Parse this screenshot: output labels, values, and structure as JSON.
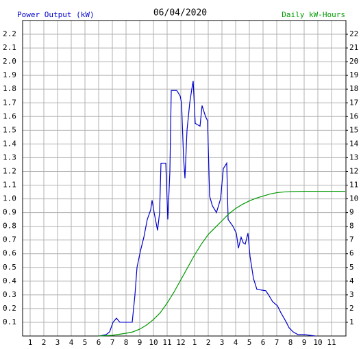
{
  "chart_data": {
    "type": "line",
    "title": "06/04/2020",
    "y_label": "Power Output (kW)",
    "y2_label": "Daily kW-Hours",
    "xlim": [
      0.45,
      24.05
    ],
    "xticks": [
      1,
      2,
      3,
      4,
      5,
      6,
      7,
      8,
      9,
      10,
      11,
      12,
      {
        "value": 13,
        "label": "1"
      },
      {
        "value": 14,
        "label": "2"
      },
      {
        "value": 15,
        "label": "3"
      },
      {
        "value": 16,
        "label": "4"
      },
      {
        "value": 17,
        "label": "5"
      },
      {
        "value": 18,
        "label": "6"
      },
      {
        "value": 19,
        "label": "7"
      },
      {
        "value": 20,
        "label": "8"
      },
      {
        "value": 21,
        "label": "9"
      },
      {
        "value": 22,
        "label": "10"
      },
      {
        "value": 23,
        "label": "11"
      }
    ],
    "ylim": [
      0,
      2.3
    ],
    "yticks": [
      0.1,
      0.2,
      0.3,
      0.4,
      0.5,
      0.6,
      0.7,
      0.8,
      0.9,
      {
        "value": 1,
        "label": "1.0"
      },
      1.1,
      1.2,
      1.3,
      1.4,
      1.5,
      1.6,
      1.7,
      1.8,
      1.9,
      {
        "value": 2,
        "label": "2.0"
      },
      2.1,
      2.2
    ],
    "y2lim": [
      0,
      23
    ],
    "y2ticks": [
      1,
      2,
      3,
      4,
      5,
      6,
      7,
      8,
      9,
      10,
      11,
      12,
      13,
      14,
      15,
      16,
      17,
      18,
      19,
      20,
      21,
      22
    ],
    "grid": true,
    "series": [
      {
        "name": "Power Output (kW)",
        "color": "#0000cc",
        "axis": "y",
        "x": [
          6.05,
          6.55,
          6.8,
          7.05,
          7.3,
          7.55,
          8.05,
          8.45,
          8.65,
          8.8,
          9.05,
          9.3,
          9.55,
          9.8,
          9.9,
          10.05,
          10.3,
          10.45,
          10.55,
          10.9,
          11.05,
          11.2,
          11.3,
          11.7,
          11.95,
          12.05,
          12.2,
          12.3,
          12.45,
          12.65,
          12.8,
          12.9,
          13.05,
          13.4,
          13.55,
          13.8,
          13.95,
          14.1,
          14.3,
          14.6,
          14.9,
          15.1,
          15.35,
          15.45,
          15.8,
          16.05,
          16.2,
          16.4,
          16.55,
          16.7,
          16.9,
          17.05,
          17.3,
          17.55,
          18.2,
          18.4,
          18.7,
          19.05,
          19.3,
          19.7,
          19.9,
          20.2,
          20.55,
          21.05,
          21.8
        ],
        "values": [
          0,
          0.01,
          0.03,
          0.1,
          0.13,
          0.1,
          0.1,
          0.1,
          0.3,
          0.5,
          0.62,
          0.72,
          0.85,
          0.92,
          0.99,
          0.9,
          0.77,
          0.9,
          1.26,
          1.26,
          0.85,
          1.2,
          1.79,
          1.79,
          1.75,
          1.7,
          1.3,
          1.15,
          1.5,
          1.7,
          1.8,
          1.86,
          1.55,
          1.53,
          1.68,
          1.6,
          1.57,
          1.02,
          0.95,
          0.9,
          1.0,
          1.22,
          1.26,
          0.85,
          0.8,
          0.75,
          0.64,
          0.72,
          0.68,
          0.67,
          0.75,
          0.58,
          0.42,
          0.34,
          0.33,
          0.3,
          0.25,
          0.22,
          0.17,
          0.1,
          0.06,
          0.03,
          0.01,
          0.01,
          0
        ]
      },
      {
        "name": "Daily kW-Hours",
        "color": "#009900",
        "axis": "y2",
        "x": [
          6,
          7,
          8,
          8.5,
          9,
          9.5,
          10,
          10.5,
          11,
          11.5,
          12,
          12.5,
          13,
          13.5,
          14,
          14.5,
          15,
          15.5,
          16,
          16.5,
          17,
          17.5,
          18,
          18.5,
          19,
          19.5,
          20,
          21,
          24
        ],
        "values": [
          0,
          0.05,
          0.2,
          0.3,
          0.5,
          0.8,
          1.2,
          1.7,
          2.4,
          3.2,
          4.1,
          5.0,
          5.9,
          6.7,
          7.4,
          7.9,
          8.4,
          8.9,
          9.3,
          9.6,
          9.85,
          10.05,
          10.2,
          10.35,
          10.45,
          10.5,
          10.53,
          10.55,
          10.55
        ]
      }
    ]
  }
}
